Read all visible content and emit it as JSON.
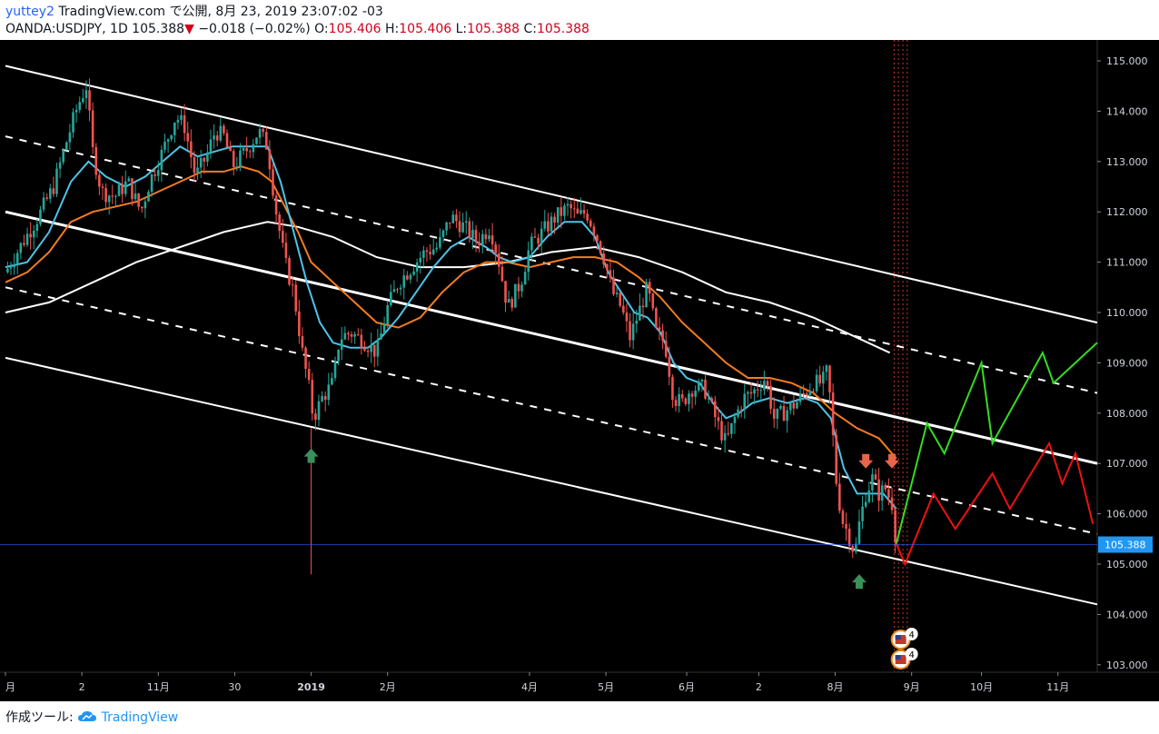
{
  "header": {
    "user": "yuttey2",
    "published": "TradingView.com で公開, 8月 23, 2019 23:07:02 -03",
    "symbol": "OANDA:USDJPY, 1D 105.388",
    "change_arrow": "▼",
    "change": "−0.018 (−0.02%)",
    "o_label": "O:",
    "o_value": "105.406",
    "h_label": "H:",
    "h_value": "105.406",
    "l_label": "L:",
    "l_value": "105.388",
    "c_label": "C:",
    "c_value": "105.388"
  },
  "footer": {
    "made_with": "作成ツール:",
    "brand": "TradingView",
    "logo_icon": "tradingview-cloud-icon"
  },
  "colors": {
    "background": "#000000",
    "channel": "#ffffff",
    "ma_fast": "#4fc3e8",
    "ma_mid": "#f57c20",
    "ma_slow": "#ffffff",
    "candle_up": "#26a69a",
    "candle_down": "#ef5350",
    "forecast_up": "#33dd22",
    "forecast_down": "#ee1111",
    "up_arrow": "#3a8f5a",
    "down_arrow": "#e8654a",
    "price_label": "#2196f3"
  },
  "chart_data": {
    "type": "candlestick",
    "symbol": "OANDA:USDJPY",
    "interval": "1D",
    "last_price": "105.388",
    "ylim": [
      102.75,
      115.5
    ],
    "y_ticks": [
      "115.000",
      "114.000",
      "113.000",
      "112.000",
      "111.000",
      "110.000",
      "109.000",
      "108.000",
      "107.000",
      "106.000",
      "105.000",
      "104.000",
      "103.000"
    ],
    "x_ticks": [
      {
        "label": "月",
        "day": 0
      },
      {
        "label": "2",
        "day": 35
      },
      {
        "label": "11月",
        "day": 70
      },
      {
        "label": "30",
        "day": 105
      },
      {
        "label": "2019",
        "day": 140,
        "bold": true
      },
      {
        "label": "2月",
        "day": 175
      },
      {
        "label": "4月",
        "day": 240
      },
      {
        "label": "5月",
        "day": 275
      },
      {
        "label": "6月",
        "day": 312
      },
      {
        "label": "2",
        "day": 345
      },
      {
        "label": "8月",
        "day": 380
      },
      {
        "label": "9月",
        "day": 415
      },
      {
        "label": "10月",
        "day": 447
      },
      {
        "label": "11月",
        "day": 482
      }
    ],
    "x_range_days": [
      0,
      500
    ],
    "price_path": [
      [
        0,
        110.8
      ],
      [
        8,
        111.4
      ],
      [
        15,
        111.9
      ],
      [
        22,
        112.5
      ],
      [
        28,
        113.4
      ],
      [
        33,
        114.1
      ],
      [
        37,
        114.5
      ],
      [
        40,
        113.2
      ],
      [
        44,
        112.4
      ],
      [
        50,
        112.3
      ],
      [
        56,
        112.6
      ],
      [
        62,
        112.0
      ],
      [
        66,
        112.6
      ],
      [
        72,
        113.2
      ],
      [
        78,
        113.9
      ],
      [
        82,
        113.7
      ],
      [
        87,
        112.7
      ],
      [
        92,
        113.1
      ],
      [
        96,
        113.6
      ],
      [
        100,
        113.5
      ],
      [
        104,
        112.9
      ],
      [
        110,
        113.2
      ],
      [
        116,
        113.6
      ],
      [
        120,
        113.3
      ],
      [
        124,
        112.0
      ],
      [
        128,
        111.0
      ],
      [
        132,
        110.4
      ],
      [
        136,
        109.2
      ],
      [
        139,
        108.5
      ],
      [
        141,
        107.9
      ],
      [
        145,
        108.3
      ],
      [
        150,
        108.6
      ],
      [
        153,
        109.5
      ],
      [
        158,
        109.6
      ],
      [
        165,
        109.4
      ],
      [
        170,
        109.2
      ],
      [
        175,
        110.1
      ],
      [
        180,
        110.6
      ],
      [
        186,
        110.9
      ],
      [
        192,
        111.2
      ],
      [
        198,
        111.3
      ],
      [
        204,
        111.9
      ],
      [
        210,
        111.7
      ],
      [
        216,
        111.4
      ],
      [
        222,
        111.7
      ],
      [
        226,
        111.0
      ],
      [
        230,
        110.1
      ],
      [
        236,
        110.6
      ],
      [
        240,
        111.3
      ],
      [
        246,
        111.6
      ],
      [
        252,
        111.9
      ],
      [
        258,
        112.1
      ],
      [
        262,
        111.9
      ],
      [
        266,
        112.0
      ],
      [
        270,
        111.6
      ],
      [
        274,
        111.1
      ],
      [
        278,
        110.4
      ],
      [
        282,
        110.1
      ],
      [
        286,
        109.5
      ],
      [
        290,
        110.0
      ],
      [
        294,
        110.5
      ],
      [
        298,
        109.6
      ],
      [
        302,
        109.4
      ],
      [
        306,
        108.3
      ],
      [
        310,
        108.2
      ],
      [
        314,
        108.5
      ],
      [
        320,
        108.5
      ],
      [
        326,
        107.8
      ],
      [
        330,
        107.4
      ],
      [
        334,
        107.9
      ],
      [
        338,
        108.3
      ],
      [
        342,
        108.4
      ],
      [
        348,
        108.7
      ],
      [
        352,
        107.9
      ],
      [
        356,
        108.0
      ],
      [
        362,
        108.2
      ],
      [
        366,
        108.4
      ],
      [
        370,
        108.6
      ],
      [
        374,
        108.6
      ],
      [
        376,
        108.8
      ],
      [
        378,
        108.2
      ],
      [
        380,
        106.8
      ],
      [
        383,
        105.9
      ],
      [
        386,
        105.6
      ],
      [
        389,
        105.2
      ],
      [
        391,
        105.8
      ],
      [
        394,
        106.4
      ],
      [
        397,
        106.7
      ],
      [
        400,
        106.4
      ],
      [
        403,
        106.5
      ],
      [
        406,
        106.2
      ],
      [
        408,
        105.4
      ]
    ],
    "ma_fast": [
      [
        0,
        110.9
      ],
      [
        10,
        111.0
      ],
      [
        20,
        111.6
      ],
      [
        30,
        112.6
      ],
      [
        38,
        113.0
      ],
      [
        46,
        112.7
      ],
      [
        55,
        112.5
      ],
      [
        64,
        112.7
      ],
      [
        72,
        113.0
      ],
      [
        80,
        113.3
      ],
      [
        88,
        113.1
      ],
      [
        96,
        113.2
      ],
      [
        104,
        113.3
      ],
      [
        112,
        113.3
      ],
      [
        120,
        113.3
      ],
      [
        126,
        112.6
      ],
      [
        132,
        111.6
      ],
      [
        138,
        110.6
      ],
      [
        144,
        109.8
      ],
      [
        150,
        109.4
      ],
      [
        158,
        109.3
      ],
      [
        166,
        109.3
      ],
      [
        172,
        109.5
      ],
      [
        180,
        109.9
      ],
      [
        188,
        110.4
      ],
      [
        196,
        110.9
      ],
      [
        204,
        111.3
      ],
      [
        212,
        111.5
      ],
      [
        220,
        111.3
      ],
      [
        226,
        111.1
      ],
      [
        232,
        111.0
      ],
      [
        240,
        111.1
      ],
      [
        248,
        111.5
      ],
      [
        256,
        111.8
      ],
      [
        264,
        111.8
      ],
      [
        270,
        111.5
      ],
      [
        276,
        110.8
      ],
      [
        282,
        110.4
      ],
      [
        288,
        110.0
      ],
      [
        294,
        109.9
      ],
      [
        300,
        109.6
      ],
      [
        306,
        109.0
      ],
      [
        312,
        108.7
      ],
      [
        318,
        108.6
      ],
      [
        324,
        108.2
      ],
      [
        330,
        107.9
      ],
      [
        336,
        108.0
      ],
      [
        342,
        108.2
      ],
      [
        350,
        108.3
      ],
      [
        358,
        108.2
      ],
      [
        366,
        108.3
      ],
      [
        372,
        108.2
      ],
      [
        378,
        107.9
      ],
      [
        384,
        106.9
      ],
      [
        390,
        106.4
      ],
      [
        396,
        106.4
      ],
      [
        402,
        106.4
      ],
      [
        408,
        106.1
      ]
    ],
    "ma_mid": [
      [
        0,
        110.6
      ],
      [
        10,
        110.8
      ],
      [
        20,
        111.2
      ],
      [
        30,
        111.8
      ],
      [
        40,
        112.0
      ],
      [
        50,
        112.1
      ],
      [
        60,
        112.2
      ],
      [
        70,
        112.4
      ],
      [
        80,
        112.6
      ],
      [
        90,
        112.8
      ],
      [
        100,
        112.8
      ],
      [
        108,
        112.9
      ],
      [
        116,
        112.8
      ],
      [
        122,
        112.6
      ],
      [
        128,
        112.1
      ],
      [
        134,
        111.6
      ],
      [
        140,
        111.0
      ],
      [
        150,
        110.6
      ],
      [
        160,
        110.2
      ],
      [
        170,
        109.8
      ],
      [
        180,
        109.7
      ],
      [
        190,
        109.9
      ],
      [
        200,
        110.4
      ],
      [
        210,
        110.8
      ],
      [
        220,
        111.0
      ],
      [
        230,
        111.0
      ],
      [
        240,
        110.9
      ],
      [
        250,
        111.0
      ],
      [
        260,
        111.1
      ],
      [
        270,
        111.1
      ],
      [
        280,
        111.0
      ],
      [
        290,
        110.7
      ],
      [
        300,
        110.3
      ],
      [
        310,
        109.8
      ],
      [
        320,
        109.4
      ],
      [
        330,
        109.0
      ],
      [
        340,
        108.7
      ],
      [
        350,
        108.7
      ],
      [
        360,
        108.6
      ],
      [
        370,
        108.4
      ],
      [
        380,
        108.0
      ],
      [
        390,
        107.7
      ],
      [
        400,
        107.5
      ],
      [
        408,
        107.1
      ]
    ],
    "ma_slow": [
      [
        0,
        110.0
      ],
      [
        20,
        110.2
      ],
      [
        40,
        110.6
      ],
      [
        60,
        111.0
      ],
      [
        80,
        111.3
      ],
      [
        100,
        111.6
      ],
      [
        120,
        111.8
      ],
      [
        134,
        111.7
      ],
      [
        150,
        111.5
      ],
      [
        170,
        111.1
      ],
      [
        190,
        110.9
      ],
      [
        210,
        110.9
      ],
      [
        230,
        111.0
      ],
      [
        250,
        111.2
      ],
      [
        270,
        111.3
      ],
      [
        290,
        111.1
      ],
      [
        310,
        110.8
      ],
      [
        330,
        110.4
      ],
      [
        350,
        110.2
      ],
      [
        370,
        109.9
      ],
      [
        390,
        109.5
      ],
      [
        405,
        109.2
      ]
    ],
    "channel": {
      "upper": [
        [
          0,
          114.9
        ],
        [
          500,
          109.8
        ]
      ],
      "upper_mid_dashed": [
        [
          0,
          113.5
        ],
        [
          500,
          108.4
        ]
      ],
      "middle": [
        [
          0,
          112.0
        ],
        [
          500,
          107.0
        ]
      ],
      "lower_mid_dashed": [
        [
          0,
          110.5
        ],
        [
          500,
          105.6
        ]
      ],
      "lower": [
        [
          0,
          109.1
        ],
        [
          500,
          104.2
        ]
      ]
    },
    "forecast_green": [
      [
        408,
        105.4
      ],
      [
        422,
        107.8
      ],
      [
        430,
        107.2
      ],
      [
        447,
        109.0
      ],
      [
        452,
        107.4
      ],
      [
        475,
        109.2
      ],
      [
        480,
        108.6
      ],
      [
        500,
        109.4
      ]
    ],
    "forecast_red": [
      [
        408,
        105.4
      ],
      [
        412,
        105.0
      ],
      [
        425,
        106.4
      ],
      [
        435,
        105.7
      ],
      [
        452,
        106.8
      ],
      [
        460,
        106.1
      ],
      [
        478,
        107.4
      ],
      [
        484,
        106.6
      ],
      [
        490,
        107.2
      ],
      [
        498,
        105.8
      ]
    ],
    "up_arrows": [
      {
        "day": 140,
        "price": 107.3
      },
      {
        "day": 391,
        "price": 104.8
      }
    ],
    "down_arrows": [
      {
        "day": 394,
        "price": 106.9
      },
      {
        "day": 406,
        "price": 106.9
      }
    ],
    "event_badges": [
      {
        "day": 410,
        "label": "4"
      },
      {
        "day": 410,
        "label": "4"
      }
    ],
    "spike_low": {
      "day": 140,
      "price": 104.8
    },
    "event_lines_days": [
      407,
      409,
      411,
      413
    ]
  }
}
